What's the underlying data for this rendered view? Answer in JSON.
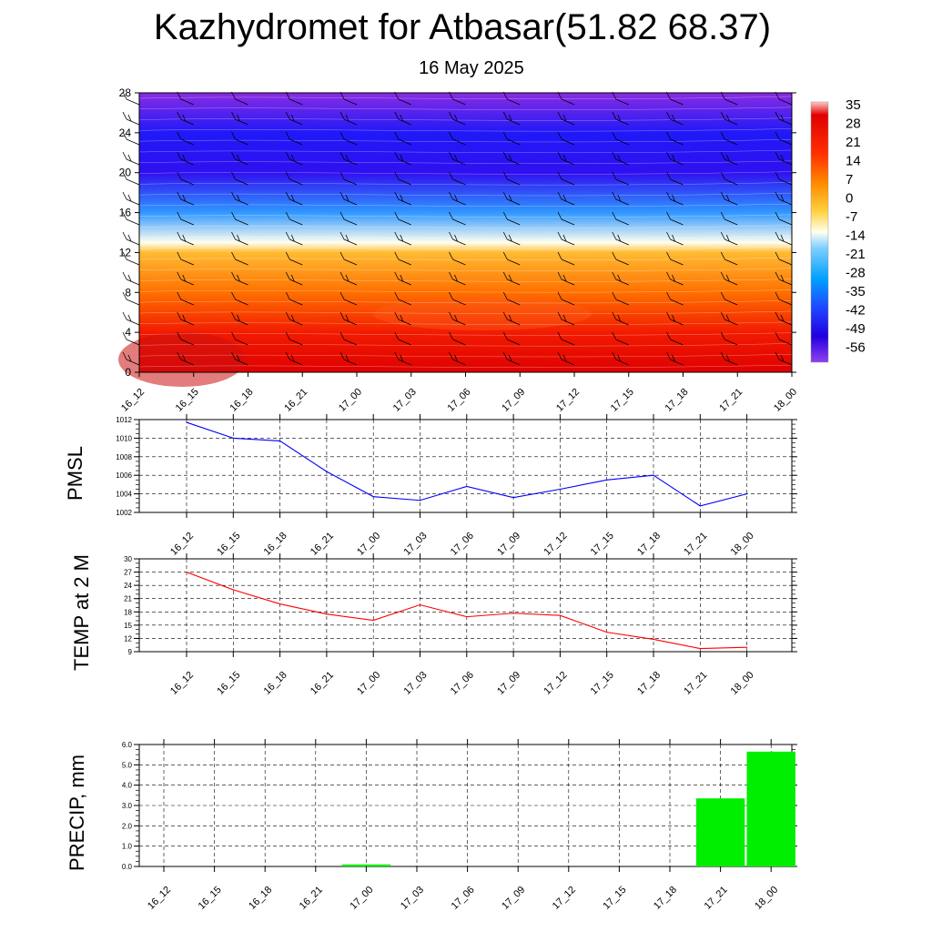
{
  "title": "Kazhydromet for Atbasar(51.82 68.37)",
  "subtitle": "16 May 2025",
  "chart_data": [
    {
      "type": "heatmap",
      "x_labels": [
        "16_12",
        "16_15",
        "16_18",
        "16_21",
        "17_00",
        "17_03",
        "17_06",
        "17_09",
        "17_12",
        "17_15",
        "17_18",
        "17_21",
        "18_00"
      ],
      "y_ticks": [
        0,
        4,
        8,
        12,
        16,
        20,
        24,
        28
      ],
      "ylim": [
        0,
        28
      ],
      "colorbar_labels": [
        "35",
        "28",
        "21",
        "14",
        "7",
        "0",
        "-7",
        "-14",
        "-21",
        "-28",
        "-35",
        "-42",
        "-49",
        "-56"
      ],
      "colors": [
        "#ff0000",
        "#ff8c00",
        "#ffff80",
        "#00bfff",
        "#0000ff",
        "#8a2be2"
      ],
      "profile": [
        {
          "height": 0,
          "value": 28
        },
        {
          "height": 4,
          "value": 24
        },
        {
          "height": 8,
          "value": 14
        },
        {
          "height": 12,
          "value": 3
        },
        {
          "height": 13,
          "value": -12
        },
        {
          "height": 16,
          "value": -30
        },
        {
          "height": 20,
          "value": -56
        },
        {
          "height": 24,
          "value": -50
        },
        {
          "height": 28,
          "value": -60
        }
      ]
    },
    {
      "type": "line",
      "ylabel": "PMSL",
      "categories": [
        "16_12",
        "16_15",
        "16_18",
        "16_21",
        "17_00",
        "17_03",
        "17_06",
        "17_09",
        "17_12",
        "17_15",
        "17_18",
        "17_21",
        "18_00"
      ],
      "values": [
        1011.7,
        1010.0,
        1009.7,
        1006.4,
        1003.7,
        1003.3,
        1004.8,
        1003.6,
        1004.5,
        1005.5,
        1006.0,
        1002.7,
        1004.0
      ],
      "ylim": [
        1002,
        1012
      ],
      "yticks": [
        "1002",
        "1004",
        "1006",
        "1008",
        "1010",
        "1012"
      ],
      "color": "#0000ff"
    },
    {
      "type": "line",
      "ylabel": "TEMP at 2 M",
      "categories": [
        "16_12",
        "16_15",
        "16_18",
        "16_21",
        "17_00",
        "17_03",
        "17_06",
        "17_09",
        "17_12",
        "17_15",
        "17_18",
        "17_21",
        "18_00"
      ],
      "values": [
        27.0,
        23.0,
        19.8,
        17.5,
        16.1,
        19.6,
        16.9,
        17.7,
        17.2,
        13.4,
        11.8,
        9.7,
        10.0
      ],
      "ylim": [
        9,
        30
      ],
      "yticks": [
        "9",
        "12",
        "15",
        "18",
        "21",
        "24",
        "27",
        "30"
      ],
      "color": "#ff0000"
    },
    {
      "type": "bar",
      "ylabel": "PRECIP, mm",
      "categories": [
        "16_12",
        "16_15",
        "16_18",
        "16_21",
        "17_00",
        "17_03",
        "17_06",
        "17_09",
        "17_12",
        "17_15",
        "17_18",
        "17_21",
        "18_00"
      ],
      "values": [
        0,
        0,
        0,
        0,
        0.1,
        0,
        0,
        0,
        0,
        0,
        0,
        3.35,
        5.65
      ],
      "ylim": [
        0,
        6
      ],
      "yticks": [
        "0.0",
        "1.0",
        "2.0",
        "3.0",
        "4.0",
        "5.0",
        "6.0"
      ],
      "color": "#00ee00"
    }
  ]
}
